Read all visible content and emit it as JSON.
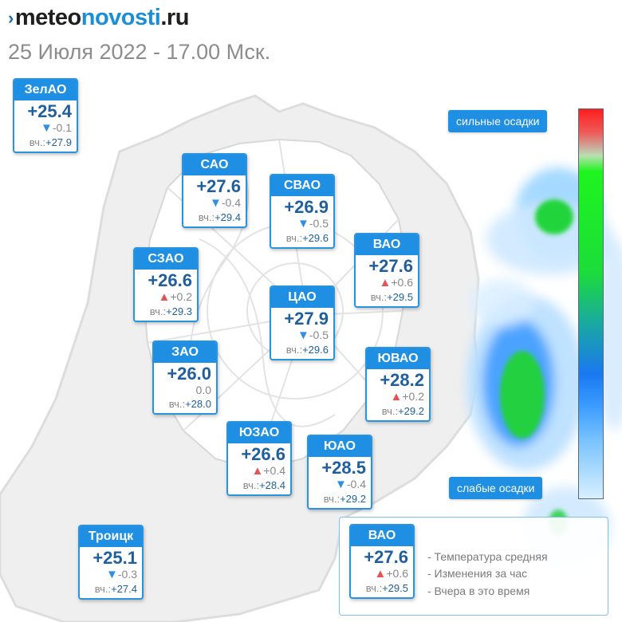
{
  "brand": {
    "part1": "meteo",
    "part2": "novosti",
    "part3": ".ru",
    "mark": "›"
  },
  "subtitle": "25 Июля 2022 - 17.00 Мск.",
  "colors": {
    "card_header": "#1e8fe3",
    "temp_text": "#1f5f9e",
    "up_arrow": "#e45454",
    "down_arrow": "#2f8fe0"
  },
  "scale": {
    "high_label": "сильные осадки",
    "low_label": "слабые осадки"
  },
  "yesterday_prefix": "вч.:",
  "districts": [
    {
      "name": "ЗелАО",
      "temp": "+25.4",
      "trend": "down",
      "change": "-0.1",
      "yesterday": "+27.9"
    },
    {
      "name": "САО",
      "temp": "+27.6",
      "trend": "down",
      "change": "-0.4",
      "yesterday": "+29.4"
    },
    {
      "name": "СВАО",
      "temp": "+26.9",
      "trend": "down",
      "change": "-0.5",
      "yesterday": "+29.6"
    },
    {
      "name": "ВАО",
      "temp": "+27.6",
      "trend": "up",
      "change": "+0.6",
      "yesterday": "+29.5"
    },
    {
      "name": "СЗАО",
      "temp": "+26.6",
      "trend": "up",
      "change": "+0.2",
      "yesterday": "+29.3"
    },
    {
      "name": "ЦАО",
      "temp": "+27.9",
      "trend": "down",
      "change": "-0.5",
      "yesterday": "+29.6"
    },
    {
      "name": "ЗАО",
      "temp": "+26.0",
      "trend": "none",
      "change": "0.0",
      "yesterday": "+28.0"
    },
    {
      "name": "ЮВАО",
      "temp": "+28.2",
      "trend": "up",
      "change": "+0.2",
      "yesterday": "+29.2"
    },
    {
      "name": "ЮЗАО",
      "temp": "+26.6",
      "trend": "up",
      "change": "+0.4",
      "yesterday": "+28.4"
    },
    {
      "name": "ЮАО",
      "temp": "+28.5",
      "trend": "down",
      "change": "-0.4",
      "yesterday": "+29.2"
    },
    {
      "name": "Троицк",
      "temp": "+25.1",
      "trend": "down",
      "change": "-0.3",
      "yesterday": "+27.4"
    }
  ],
  "legend": {
    "sample": {
      "name": "ВАО",
      "temp": "+27.6",
      "trend": "up",
      "change": "+0.6",
      "yesterday": "+29.5"
    },
    "lines": [
      "- Температура средняя",
      "- Изменения за час",
      "- Вчера в это время"
    ]
  }
}
